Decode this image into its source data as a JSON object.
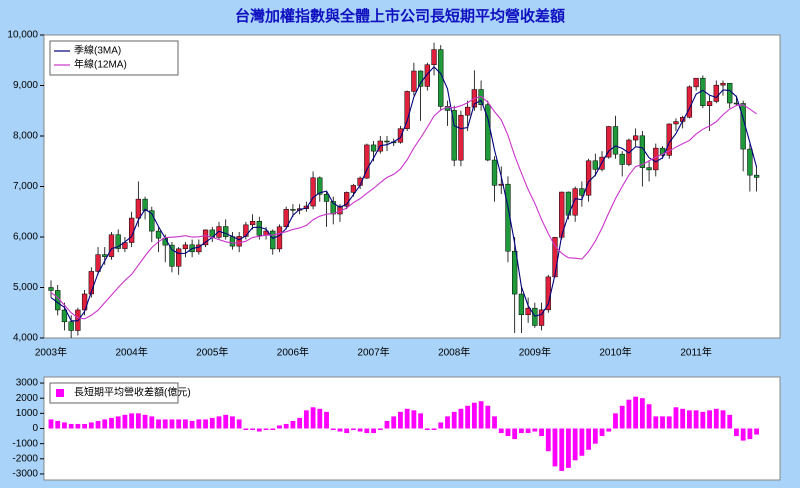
{
  "chart_data": [
    {
      "type": "candlestick",
      "title": "台灣加權指數與全體上市公司長短期平均營收差額",
      "categories": [
        "2003年",
        null,
        null,
        null,
        null,
        null,
        null,
        null,
        null,
        null,
        null,
        null,
        "2004年",
        null,
        null,
        null,
        null,
        null,
        null,
        null,
        null,
        null,
        null,
        null,
        "2005年",
        null,
        null,
        null,
        null,
        null,
        null,
        null,
        null,
        null,
        null,
        null,
        "2006年",
        null,
        null,
        null,
        null,
        null,
        null,
        null,
        null,
        null,
        null,
        null,
        "2007年",
        null,
        null,
        null,
        null,
        null,
        null,
        null,
        null,
        null,
        null,
        null,
        "2008年",
        null,
        null,
        null,
        null,
        null,
        null,
        null,
        null,
        null,
        null,
        null,
        "2009年",
        null,
        null,
        null,
        null,
        null,
        null,
        null,
        null,
        null,
        null,
        null,
        "2010年",
        null,
        null,
        null,
        null,
        null,
        null,
        null,
        null,
        null,
        null,
        null,
        "2011年",
        null,
        null,
        null,
        null,
        null,
        null,
        null,
        null,
        null
      ],
      "open": [
        5000,
        4942,
        4555,
        4321,
        4148,
        4555,
        4872,
        5318,
        5651,
        5611,
        6045,
        5771,
        5890,
        6375,
        6750,
        6522,
        6117,
        5977,
        5839,
        5420,
        5766,
        5845,
        5706,
        5844,
        6140,
        5994,
        6207,
        6006,
        5819,
        6012,
        6241,
        6311,
        6033,
        6118,
        5764,
        6203,
        6548,
        6532,
        6561,
        6613,
        7172,
        6847,
        6704,
        6455,
        6611,
        6883,
        7021,
        7167,
        7823,
        7700,
        7901,
        7884,
        7875,
        8145,
        8883,
        9287,
        8982,
        9411,
        9711,
        8586,
        8506,
        7521,
        8412,
        8572,
        8920,
        8619,
        7524,
        7024,
        7046,
        5719,
        4870,
        4460,
        4591,
        4248,
        4557,
        5210,
        5993,
        6890,
        6432,
        6958,
        6826,
        7509,
        7340,
        7582,
        8188,
        7640,
        7436,
        7920,
        8004,
        7374,
        7329,
        7760,
        7616,
        8238,
        8287,
        8372,
        8973,
        9145,
        8600,
        8683,
        9007,
        9045,
        8653,
        8644,
        7741,
        7225
      ],
      "high": [
        5140,
        5050,
        4700,
        4450,
        4600,
        4950,
        5400,
        5800,
        5800,
        6100,
        6150,
        6000,
        6500,
        7100,
        6800,
        6600,
        6200,
        6050,
        5900,
        5800,
        5900,
        5950,
        5950,
        6150,
        6200,
        6300,
        6350,
        6100,
        6100,
        6300,
        6450,
        6400,
        6200,
        6150,
        6250,
        6600,
        6650,
        6650,
        6700,
        7300,
        7200,
        6900,
        6800,
        6650,
        6900,
        7050,
        7200,
        7850,
        7900,
        8000,
        8000,
        7950,
        8200,
        8900,
        9450,
        9300,
        9450,
        9850,
        9800,
        8700,
        8600,
        8500,
        8700,
        9300,
        9100,
        8700,
        7600,
        7400,
        7200,
        6000,
        5000,
        4800,
        4700,
        4700,
        5250,
        6000,
        6900,
        6900,
        7000,
        7100,
        7550,
        7650,
        7700,
        8200,
        8400,
        7700,
        7950,
        8150,
        8100,
        7500,
        7850,
        7800,
        8250,
        8350,
        8400,
        9000,
        9100,
        9200,
        8800,
        9100,
        9100,
        9050,
        8800,
        8700,
        7850,
        7400
      ],
      "low": [
        4800,
        4450,
        4150,
        4000,
        4050,
        4450,
        4800,
        5250,
        5450,
        5550,
        5700,
        5700,
        5800,
        6200,
        6350,
        5900,
        5700,
        5500,
        5300,
        5250,
        5600,
        5600,
        5650,
        5800,
        5900,
        5950,
        5950,
        5750,
        5700,
        5950,
        6150,
        5950,
        5950,
        5650,
        5700,
        6150,
        6400,
        6450,
        6500,
        6550,
        6700,
        6200,
        6250,
        6300,
        6550,
        6800,
        6950,
        7150,
        7500,
        7650,
        7700,
        7800,
        7850,
        8100,
        8800,
        8300,
        8900,
        9200,
        8500,
        8200,
        7400,
        7400,
        8100,
        8500,
        8500,
        7500,
        6700,
        6850,
        5500,
        4100,
        4100,
        4300,
        4200,
        4150,
        4500,
        5200,
        5950,
        6350,
        6300,
        6600,
        6700,
        7200,
        7300,
        7550,
        7550,
        7200,
        7400,
        7800,
        7000,
        7100,
        7200,
        7550,
        7550,
        8100,
        8150,
        8350,
        8900,
        8550,
        8100,
        8650,
        8800,
        8550,
        8600,
        7300,
        6900,
        6900
      ],
      "close": [
        4942,
        4555,
        4321,
        4148,
        4555,
        4872,
        5318,
        5651,
        5611,
        6045,
        5771,
        5890,
        6375,
        6750,
        6522,
        6117,
        5977,
        5839,
        5420,
        5766,
        5845,
        5706,
        5844,
        6140,
        5994,
        6207,
        6006,
        5819,
        6012,
        6241,
        6311,
        6033,
        6118,
        5764,
        6203,
        6548,
        6532,
        6561,
        6613,
        7172,
        6847,
        6704,
        6455,
        6611,
        6883,
        7021,
        7167,
        7823,
        7700,
        7901,
        7884,
        7875,
        8145,
        8883,
        9287,
        8982,
        9411,
        9711,
        8586,
        8506,
        7521,
        8412,
        8572,
        8920,
        8619,
        7524,
        7024,
        7046,
        5719,
        4870,
        4460,
        4591,
        4248,
        4557,
        5210,
        5993,
        6890,
        6432,
        6958,
        6826,
        7509,
        7340,
        7582,
        8188,
        7640,
        7436,
        7920,
        8004,
        7374,
        7329,
        7760,
        7616,
        8238,
        8287,
        8372,
        8973,
        9145,
        8600,
        8683,
        9007,
        9045,
        8653,
        8644,
        7741,
        7225,
        7180
      ],
      "up_color": "#e0203c",
      "down_color": "#1f9a3a",
      "series": [
        {
          "name": "季線(3MA)",
          "color": "#000080",
          "values": [
            4800,
            4700,
            4606,
            4341,
            4341,
            4525,
            4915,
            5280,
            5527,
            5769,
            5809,
            5902,
            6012,
            6338,
            6549,
            6463,
            6205,
            5978,
            5745,
            5675,
            5677,
            5772,
            5798,
            5897,
            5993,
            6114,
            6069,
            6011,
            5946,
            6024,
            6188,
            6195,
            6154,
            5972,
            6028,
            6172,
            6428,
            6547,
            6569,
            6782,
            6877,
            6908,
            6669,
            6590,
            6650,
            6838,
            7024,
            7337,
            7563,
            7808,
            7828,
            7887,
            7968,
            8301,
            8772,
            9051,
            9227,
            9368,
            9236,
            8934,
            8204,
            8146,
            8168,
            8635,
            8704,
            8354,
            7722,
            7198,
            6596,
            5878,
            5016,
            4640,
            4433,
            4465,
            4672,
            5253,
            6031,
            6438,
            6760,
            6739,
            7098,
            7225,
            7477,
            7703,
            7803,
            7755,
            7665,
            7787,
            7766,
            7569,
            7488,
            7568,
            7871,
            8047,
            8299,
            8544,
            8830,
            8906,
            8809,
            8763,
            8912,
            8902,
            8781,
            8346,
            7870,
            7382
          ]
        },
        {
          "name": "年線(12MA)",
          "color": "#cc33cc",
          "values": [
            4900,
            4800,
            4650,
            4500,
            4400,
            4380,
            4450,
            4550,
            4700,
            4850,
            5000,
            5140,
            5259,
            5442,
            5626,
            5790,
            5908,
            5989,
            5997,
            6007,
            6026,
            5998,
            6004,
            6025,
            5993,
            5948,
            5905,
            5880,
            5883,
            5917,
            5991,
            6013,
            6036,
            6041,
            6071,
            6105,
            6150,
            6179,
            6230,
            6342,
            6412,
            6451,
            6463,
            6511,
            6574,
            6679,
            6760,
            6866,
            6963,
            7075,
            7181,
            7239,
            7347,
            7529,
            7765,
            7963,
            8173,
            8397,
            8516,
            8573,
            8558,
            8600,
            8658,
            8745,
            8784,
            8671,
            8482,
            8321,
            8013,
            7610,
            7266,
            6940,
            6667,
            6346,
            6066,
            5822,
            5678,
            5587,
            5581,
            5563,
            5712,
            5918,
            6178,
            6478,
            6760,
            7000,
            7226,
            7394,
            7434,
            7509,
            7576,
            7642,
            7702,
            7781,
            7847,
            7912,
            8038,
            8135,
            8198,
            8282,
            8421,
            8532,
            8605,
            8616,
            8531,
            8439
          ]
        }
      ],
      "ylim": [
        4000,
        10000
      ],
      "yticks": [
        {
          "value": 4000,
          "label": "4,000"
        },
        {
          "value": 5000,
          "label": "5,000"
        },
        {
          "value": 6000,
          "label": "6,000"
        },
        {
          "value": 7000,
          "label": "7,000"
        },
        {
          "value": 8000,
          "label": "8,000"
        },
        {
          "value": 9000,
          "label": "9,000"
        },
        {
          "value": 10000,
          "label": "10,000"
        }
      ],
      "legend": "upper left"
    },
    {
      "type": "bar",
      "series": [
        {
          "name": "長短期平均營收差額(億元)",
          "color": "#ff00ff",
          "values": [
            600,
            500,
            400,
            300,
            300,
            300,
            400,
            500,
            600,
            700,
            800,
            900,
            1000,
            1000,
            900,
            800,
            600,
            600,
            600,
            600,
            600,
            500,
            600,
            600,
            700,
            800,
            900,
            800,
            600,
            -100,
            -100,
            -200,
            -100,
            -100,
            200,
            300,
            500,
            700,
            1200,
            1400,
            1300,
            1100,
            -100,
            -200,
            -300,
            -100,
            -200,
            -300,
            -300,
            -100,
            500,
            800,
            1100,
            1300,
            1200,
            1000,
            -100,
            -100,
            400,
            800,
            1100,
            1300,
            1500,
            1700,
            1800,
            1500,
            800,
            -300,
            -500,
            -700,
            -300,
            -300,
            -200,
            -500,
            -1500,
            -2500,
            -2800,
            -2600,
            -2100,
            -1800,
            -1400,
            -1000,
            -500,
            -200,
            1000,
            1500,
            1900,
            2100,
            2000,
            1600,
            800,
            800,
            800,
            1400,
            1300,
            1200,
            1200,
            1100,
            1200,
            1300,
            1200,
            900,
            -500,
            -800,
            -700,
            -400
          ]
        }
      ],
      "ylim": [
        -3400,
        3400
      ],
      "yticks": [
        -3000,
        -2000,
        -1000,
        0,
        1000,
        2000,
        3000
      ],
      "legend": "upper left"
    }
  ]
}
